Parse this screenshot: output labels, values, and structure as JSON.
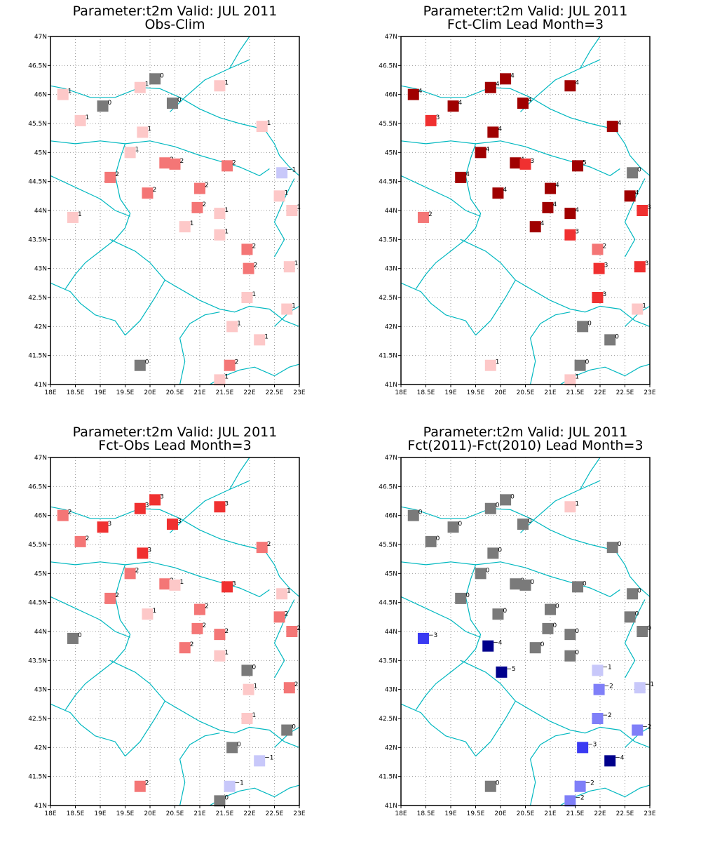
{
  "colors": {
    "coast": "#00b8c0",
    "grid": "#9a9a9a",
    "frame": "#000000",
    "value_colors": {
      "-5": "#00008c",
      "-4": "#00008c",
      "-3": "#3a3af2",
      "-2": "#7f7ff8",
      "-1": "#c8c8fa",
      "0": "#7a7a7a",
      "1": "#fdc8c8",
      "2": "#f47676",
      "3": "#f03030",
      "4": "#f03030",
      "5": "#f03030"
    },
    "value_colors_panel2": {
      "2": "#f47676",
      "3": "#f03030",
      "4": "#f03030",
      "5": "#f03030"
    },
    "dark_red": "#a00000"
  },
  "chart_data": [
    {
      "type": "scatter",
      "title": "Parameter:t2m Valid: JUL 2011",
      "subtitle": "Obs-Clim",
      "x_ticks": [
        "18E",
        "18.5E",
        "19E",
        "19.5E",
        "20E",
        "20.5E",
        "21E",
        "21.5E",
        "22E",
        "22.5E",
        "23E"
      ],
      "y_ticks": [
        "41N",
        "41.5N",
        "42N",
        "42.5N",
        "43N",
        "43.5N",
        "44N",
        "44.5N",
        "45N",
        "45.5N",
        "46N",
        "46.5N",
        "47N"
      ],
      "xlim": [
        18,
        23
      ],
      "ylim": [
        41,
        47
      ],
      "grid": true,
      "points": [
        {
          "lon": 18.25,
          "lat": 46.0,
          "v": 1
        },
        {
          "lon": 18.6,
          "lat": 45.55,
          "v": 1
        },
        {
          "lon": 19.05,
          "lat": 45.8,
          "v": 0
        },
        {
          "lon": 19.8,
          "lat": 46.12,
          "v": 1
        },
        {
          "lon": 20.1,
          "lat": 46.27,
          "v": 0
        },
        {
          "lon": 20.45,
          "lat": 45.85,
          "v": 0
        },
        {
          "lon": 21.4,
          "lat": 46.15,
          "v": 1
        },
        {
          "lon": 19.85,
          "lat": 45.35,
          "v": 1
        },
        {
          "lon": 22.25,
          "lat": 45.45,
          "v": 1
        },
        {
          "lon": 19.6,
          "lat": 45.0,
          "v": 1
        },
        {
          "lon": 20.3,
          "lat": 44.82,
          "v": 2
        },
        {
          "lon": 20.5,
          "lat": 44.8,
          "v": 2
        },
        {
          "lon": 21.55,
          "lat": 44.77,
          "v": 2
        },
        {
          "lon": 22.65,
          "lat": 44.65,
          "v": -1
        },
        {
          "lon": 19.2,
          "lat": 44.57,
          "v": 2
        },
        {
          "lon": 19.95,
          "lat": 44.3,
          "v": 2
        },
        {
          "lon": 21.0,
          "lat": 44.38,
          "v": 2
        },
        {
          "lon": 22.6,
          "lat": 44.25,
          "v": 1
        },
        {
          "lon": 20.95,
          "lat": 44.05,
          "v": 2
        },
        {
          "lon": 18.45,
          "lat": 43.88,
          "v": 1
        },
        {
          "lon": 21.4,
          "lat": 43.95,
          "v": 1
        },
        {
          "lon": 22.85,
          "lat": 44.0,
          "v": 1
        },
        {
          "lon": 20.7,
          "lat": 43.72,
          "v": 1
        },
        {
          "lon": 21.4,
          "lat": 43.58,
          "v": 1
        },
        {
          "lon": 21.95,
          "lat": 43.33,
          "v": 2
        },
        {
          "lon": 21.98,
          "lat": 43.0,
          "v": 2
        },
        {
          "lon": 22.8,
          "lat": 43.03,
          "v": 1
        },
        {
          "lon": 21.95,
          "lat": 42.5,
          "v": 1
        },
        {
          "lon": 22.75,
          "lat": 42.3,
          "v": 1
        },
        {
          "lon": 21.65,
          "lat": 42.0,
          "v": 1
        },
        {
          "lon": 22.2,
          "lat": 41.77,
          "v": 1
        },
        {
          "lon": 19.8,
          "lat": 41.33,
          "v": 0
        },
        {
          "lon": 21.6,
          "lat": 41.33,
          "v": 2
        },
        {
          "lon": 21.4,
          "lat": 41.08,
          "v": 1
        }
      ]
    },
    {
      "type": "scatter",
      "title": "Parameter:t2m Valid: JUL 2011",
      "subtitle": "Fct-Clim Lead Month=3",
      "x_ticks": [
        "18E",
        "18.5E",
        "19E",
        "19.5E",
        "20E",
        "20.5E",
        "21E",
        "21.5E",
        "22E",
        "22.5E",
        "23E"
      ],
      "y_ticks": [
        "41N",
        "41.5N",
        "42N",
        "42.5N",
        "43N",
        "43.5N",
        "44N",
        "44.5N",
        "45N",
        "45.5N",
        "46N",
        "46.5N",
        "47N"
      ],
      "xlim": [
        18,
        23
      ],
      "ylim": [
        41,
        47
      ],
      "grid": true,
      "points": [
        {
          "lon": 18.25,
          "lat": 46.0,
          "v": 4
        },
        {
          "lon": 18.6,
          "lat": 45.55,
          "v": 3
        },
        {
          "lon": 19.05,
          "lat": 45.8,
          "v": 4
        },
        {
          "lon": 19.8,
          "lat": 46.12,
          "v": 4
        },
        {
          "lon": 20.1,
          "lat": 46.27,
          "v": 4
        },
        {
          "lon": 20.45,
          "lat": 45.85,
          "v": 4
        },
        {
          "lon": 21.4,
          "lat": 46.15,
          "v": 4
        },
        {
          "lon": 19.85,
          "lat": 45.35,
          "v": 4
        },
        {
          "lon": 22.25,
          "lat": 45.45,
          "v": 4
        },
        {
          "lon": 19.6,
          "lat": 45.0,
          "v": 4
        },
        {
          "lon": 20.3,
          "lat": 44.82,
          "v": 4
        },
        {
          "lon": 20.5,
          "lat": 44.8,
          "v": 3
        },
        {
          "lon": 21.55,
          "lat": 44.77,
          "v": 5
        },
        {
          "lon": 22.65,
          "lat": 44.65,
          "v": 0
        },
        {
          "lon": 19.2,
          "lat": 44.57,
          "v": 4
        },
        {
          "lon": 19.95,
          "lat": 44.3,
          "v": 4
        },
        {
          "lon": 21.0,
          "lat": 44.38,
          "v": 4
        },
        {
          "lon": 22.6,
          "lat": 44.25,
          "v": 4
        },
        {
          "lon": 20.95,
          "lat": 44.05,
          "v": 4
        },
        {
          "lon": 18.45,
          "lat": 43.88,
          "v": 2
        },
        {
          "lon": 21.4,
          "lat": 43.95,
          "v": 4
        },
        {
          "lon": 22.85,
          "lat": 44.0,
          "v": 3
        },
        {
          "lon": 20.7,
          "lat": 43.72,
          "v": 4
        },
        {
          "lon": 21.4,
          "lat": 43.58,
          "v": 3
        },
        {
          "lon": 21.95,
          "lat": 43.33,
          "v": 2
        },
        {
          "lon": 21.98,
          "lat": 43.0,
          "v": 3
        },
        {
          "lon": 22.8,
          "lat": 43.03,
          "v": 3
        },
        {
          "lon": 21.95,
          "lat": 42.5,
          "v": 3
        },
        {
          "lon": 22.75,
          "lat": 42.3,
          "v": 1
        },
        {
          "lon": 21.65,
          "lat": 42.0,
          "v": 0
        },
        {
          "lon": 22.2,
          "lat": 41.77,
          "v": 0
        },
        {
          "lon": 19.8,
          "lat": 41.33,
          "v": 1
        },
        {
          "lon": 21.6,
          "lat": 41.33,
          "v": 0
        },
        {
          "lon": 21.4,
          "lat": 41.08,
          "v": 1
        }
      ]
    },
    {
      "type": "scatter",
      "title": "Parameter:t2m Valid: JUL 2011",
      "subtitle": "Fct-Obs Lead Month=3",
      "x_ticks": [
        "18E",
        "18.5E",
        "19E",
        "19.5E",
        "20E",
        "20.5E",
        "21E",
        "21.5E",
        "22E",
        "22.5E",
        "23E"
      ],
      "y_ticks": [
        "41N",
        "41.5N",
        "42N",
        "42.5N",
        "43N",
        "43.5N",
        "44N",
        "44.5N",
        "45N",
        "45.5N",
        "46N",
        "46.5N",
        "47N"
      ],
      "xlim": [
        18,
        23
      ],
      "ylim": [
        41,
        47
      ],
      "grid": true,
      "points": [
        {
          "lon": 18.25,
          "lat": 46.0,
          "v": 2
        },
        {
          "lon": 18.6,
          "lat": 45.55,
          "v": 2
        },
        {
          "lon": 19.05,
          "lat": 45.8,
          "v": 3
        },
        {
          "lon": 19.8,
          "lat": 46.12,
          "v": 3
        },
        {
          "lon": 20.1,
          "lat": 46.27,
          "v": 3
        },
        {
          "lon": 20.45,
          "lat": 45.85,
          "v": 3
        },
        {
          "lon": 21.4,
          "lat": 46.15,
          "v": 3
        },
        {
          "lon": 19.85,
          "lat": 45.35,
          "v": 3
        },
        {
          "lon": 22.25,
          "lat": 45.45,
          "v": 2
        },
        {
          "lon": 19.6,
          "lat": 45.0,
          "v": 2
        },
        {
          "lon": 20.3,
          "lat": 44.82,
          "v": 2
        },
        {
          "lon": 20.5,
          "lat": 44.8,
          "v": 1
        },
        {
          "lon": 21.55,
          "lat": 44.77,
          "v": 3
        },
        {
          "lon": 22.65,
          "lat": 44.65,
          "v": 1
        },
        {
          "lon": 19.2,
          "lat": 44.57,
          "v": 2
        },
        {
          "lon": 19.95,
          "lat": 44.3,
          "v": 1
        },
        {
          "lon": 21.0,
          "lat": 44.38,
          "v": 2
        },
        {
          "lon": 22.6,
          "lat": 44.25,
          "v": 2
        },
        {
          "lon": 20.95,
          "lat": 44.05,
          "v": 2
        },
        {
          "lon": 18.45,
          "lat": 43.88,
          "v": 0
        },
        {
          "lon": 21.4,
          "lat": 43.95,
          "v": 2
        },
        {
          "lon": 22.85,
          "lat": 44.0,
          "v": 2
        },
        {
          "lon": 20.7,
          "lat": 43.72,
          "v": 2
        },
        {
          "lon": 21.4,
          "lat": 43.58,
          "v": 1
        },
        {
          "lon": 21.95,
          "lat": 43.33,
          "v": 0
        },
        {
          "lon": 21.98,
          "lat": 43.0,
          "v": 1
        },
        {
          "lon": 22.8,
          "lat": 43.03,
          "v": 2
        },
        {
          "lon": 21.95,
          "lat": 42.5,
          "v": 1
        },
        {
          "lon": 22.75,
          "lat": 42.3,
          "v": 0
        },
        {
          "lon": 21.65,
          "lat": 42.0,
          "v": 0
        },
        {
          "lon": 22.2,
          "lat": 41.77,
          "v": -1
        },
        {
          "lon": 19.8,
          "lat": 41.33,
          "v": 2
        },
        {
          "lon": 21.6,
          "lat": 41.33,
          "v": -1
        },
        {
          "lon": 21.4,
          "lat": 41.08,
          "v": 0
        }
      ]
    },
    {
      "type": "scatter",
      "title": "Parameter:t2m Valid: JUL 2011",
      "subtitle": "Fct(2011)-Fct(2010) Lead Month=3",
      "x_ticks": [
        "18E",
        "18.5E",
        "19E",
        "19.5E",
        "20E",
        "20.5E",
        "21E",
        "21.5E",
        "22E",
        "22.5E",
        "23E"
      ],
      "y_ticks": [
        "41N",
        "41.5N",
        "42N",
        "42.5N",
        "43N",
        "43.5N",
        "44N",
        "44.5N",
        "45N",
        "45.5N",
        "46N",
        "46.5N",
        "47N"
      ],
      "xlim": [
        18,
        23
      ],
      "ylim": [
        41,
        47
      ],
      "grid": true,
      "points": [
        {
          "lon": 18.25,
          "lat": 46.0,
          "v": 0
        },
        {
          "lon": 18.6,
          "lat": 45.55,
          "v": 0
        },
        {
          "lon": 19.05,
          "lat": 45.8,
          "v": 0
        },
        {
          "lon": 19.8,
          "lat": 46.12,
          "v": 0
        },
        {
          "lon": 20.1,
          "lat": 46.27,
          "v": 0
        },
        {
          "lon": 20.45,
          "lat": 45.85,
          "v": 0
        },
        {
          "lon": 21.4,
          "lat": 46.15,
          "v": 1
        },
        {
          "lon": 19.85,
          "lat": 45.35,
          "v": 0
        },
        {
          "lon": 22.25,
          "lat": 45.45,
          "v": 0
        },
        {
          "lon": 19.6,
          "lat": 45.0,
          "v": 0
        },
        {
          "lon": 20.3,
          "lat": 44.82,
          "v": 0
        },
        {
          "lon": 20.5,
          "lat": 44.8,
          "v": 0
        },
        {
          "lon": 21.55,
          "lat": 44.77,
          "v": 0
        },
        {
          "lon": 22.65,
          "lat": 44.65,
          "v": 0
        },
        {
          "lon": 19.2,
          "lat": 44.57,
          "v": 0
        },
        {
          "lon": 19.95,
          "lat": 44.3,
          "v": 0
        },
        {
          "lon": 21.0,
          "lat": 44.38,
          "v": 0
        },
        {
          "lon": 22.6,
          "lat": 44.25,
          "v": 0
        },
        {
          "lon": 20.95,
          "lat": 44.05,
          "v": 0
        },
        {
          "lon": 18.45,
          "lat": 43.88,
          "v": -3
        },
        {
          "lon": 21.4,
          "lat": 43.95,
          "v": 0
        },
        {
          "lon": 22.85,
          "lat": 44.0,
          "v": 0
        },
        {
          "lon": 19.75,
          "lat": 43.75,
          "v": -4
        },
        {
          "lon": 20.7,
          "lat": 43.72,
          "v": 0
        },
        {
          "lon": 21.4,
          "lat": 43.58,
          "v": 0
        },
        {
          "lon": 20.02,
          "lat": 43.3,
          "v": -5
        },
        {
          "lon": 21.95,
          "lat": 43.33,
          "v": -1
        },
        {
          "lon": 21.98,
          "lat": 43.0,
          "v": -2
        },
        {
          "lon": 22.8,
          "lat": 43.03,
          "v": -1
        },
        {
          "lon": 21.95,
          "lat": 42.5,
          "v": -2
        },
        {
          "lon": 22.75,
          "lat": 42.3,
          "v": -2
        },
        {
          "lon": 21.65,
          "lat": 42.0,
          "v": -3
        },
        {
          "lon": 22.2,
          "lat": 41.77,
          "v": -4
        },
        {
          "lon": 19.8,
          "lat": 41.33,
          "v": 0
        },
        {
          "lon": 21.6,
          "lat": 41.33,
          "v": -2
        },
        {
          "lon": 21.4,
          "lat": 41.08,
          "v": -2
        }
      ]
    }
  ]
}
